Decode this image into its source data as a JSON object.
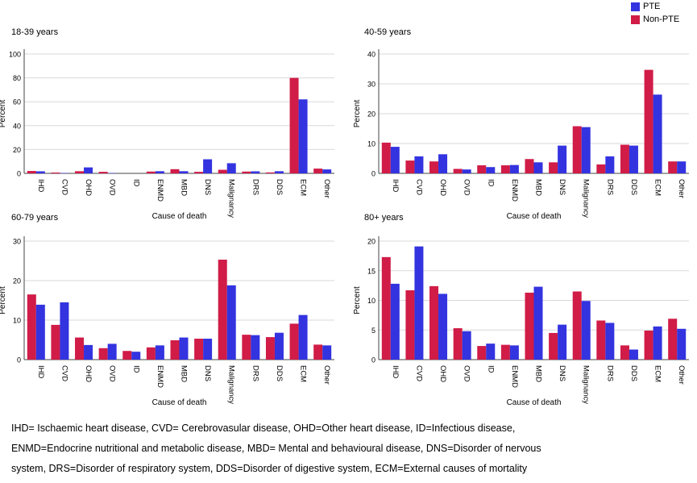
{
  "legend": [
    {
      "name": "PTE",
      "color": "#3333e0"
    },
    {
      "name": "Non-PTE",
      "color": "#d01c47"
    }
  ],
  "chart_data": [
    {
      "type": "bar",
      "title": "18-39 years",
      "xlabel": "Cause of death",
      "ylabel": "Percent",
      "ylim": [
        0,
        100
      ],
      "yticks": [
        0,
        20,
        40,
        60,
        80,
        100
      ],
      "categories": [
        "IHD",
        "CVD",
        "OHD",
        "OVD",
        "ID",
        "ENMD",
        "MBD",
        "DNS",
        "Malignancy",
        "DRS",
        "DDS",
        "ECM",
        "Other"
      ],
      "series": [
        {
          "name": "Non-PTE",
          "values": [
            2.0,
            0.7,
            1.8,
            1.3,
            0.0,
            1.5,
            3.5,
            1.3,
            3.0,
            1.5,
            0.8,
            80.0,
            4.0
          ]
        },
        {
          "name": "PTE",
          "values": [
            1.7,
            0.3,
            5.0,
            0.3,
            0.0,
            1.8,
            1.8,
            11.8,
            8.5,
            1.7,
            1.8,
            62.0,
            3.3
          ]
        }
      ]
    },
    {
      "type": "bar",
      "title": "40-59 years",
      "xlabel": "Cause of death",
      "ylabel": "Percent",
      "ylim": [
        0,
        40
      ],
      "yticks": [
        0,
        10,
        20,
        30,
        40
      ],
      "categories": [
        "IHD",
        "CVD",
        "OHD",
        "OVD",
        "ID",
        "ENMD",
        "MBD",
        "DNS",
        "Malignancy",
        "DRS",
        "DDS",
        "ECM",
        "Other"
      ],
      "series": [
        {
          "name": "Non-PTE",
          "values": [
            10.3,
            4.3,
            4.0,
            1.5,
            2.7,
            2.7,
            4.8,
            3.7,
            15.8,
            3.0,
            9.6,
            34.7,
            4.0
          ]
        },
        {
          "name": "PTE",
          "values": [
            8.9,
            5.7,
            6.4,
            1.3,
            2.1,
            2.8,
            3.7,
            9.3,
            15.5,
            5.7,
            9.3,
            26.4,
            4.0
          ]
        }
      ]
    },
    {
      "type": "bar",
      "title": "60-79 years",
      "xlabel": "Cause of death",
      "ylabel": "Percent",
      "ylim": [
        0,
        30
      ],
      "yticks": [
        0,
        10,
        20,
        30
      ],
      "categories": [
        "IHD",
        "CVD",
        "OHD",
        "OVD",
        "ID",
        "ENMD",
        "MBD",
        "DNS",
        "Malignancy",
        "DRS",
        "DDS",
        "ECM",
        "Other"
      ],
      "series": [
        {
          "name": "Non-PTE",
          "values": [
            16.5,
            8.8,
            5.6,
            2.9,
            2.2,
            3.1,
            4.9,
            5.3,
            25.3,
            6.3,
            5.7,
            9.1,
            3.8
          ]
        },
        {
          "name": "PTE",
          "values": [
            13.9,
            14.5,
            3.7,
            4.0,
            2.0,
            3.6,
            5.6,
            5.3,
            18.8,
            6.2,
            6.8,
            11.3,
            3.6
          ]
        }
      ]
    },
    {
      "type": "bar",
      "title": "80+ years",
      "xlabel": "Cause of death",
      "ylabel": "Percent",
      "ylim": [
        0,
        20
      ],
      "yticks": [
        0,
        5,
        10,
        15,
        20
      ],
      "categories": [
        "IHD",
        "CVD",
        "OHD",
        "OVD",
        "ID",
        "ENMD",
        "MBD",
        "DNS",
        "Malignancy",
        "DRS",
        "DDS",
        "ECM",
        "Other"
      ],
      "series": [
        {
          "name": "Non-PTE",
          "values": [
            17.3,
            11.7,
            12.4,
            5.3,
            2.3,
            2.5,
            11.3,
            4.5,
            11.5,
            6.6,
            2.4,
            4.9,
            6.9
          ]
        },
        {
          "name": "PTE",
          "values": [
            12.8,
            19.1,
            11.1,
            4.8,
            2.7,
            2.4,
            12.3,
            5.9,
            9.9,
            6.2,
            1.7,
            5.6,
            5.2
          ]
        }
      ]
    }
  ],
  "footnote": [
    "IHD= Ischaemic heart disease, CVD= Cerebrovasular disease, OHD=Other heart disease, ID=Infectious disease,",
    "ENMD=Endocrine nutritional and metabolic disease, MBD= Mental and behavioural disease, DNS=Disorder of nervous",
    "system, DRS=Disorder of respiratory system, DDS=Disorder of digestive system, ECM=External causes of mortality"
  ]
}
